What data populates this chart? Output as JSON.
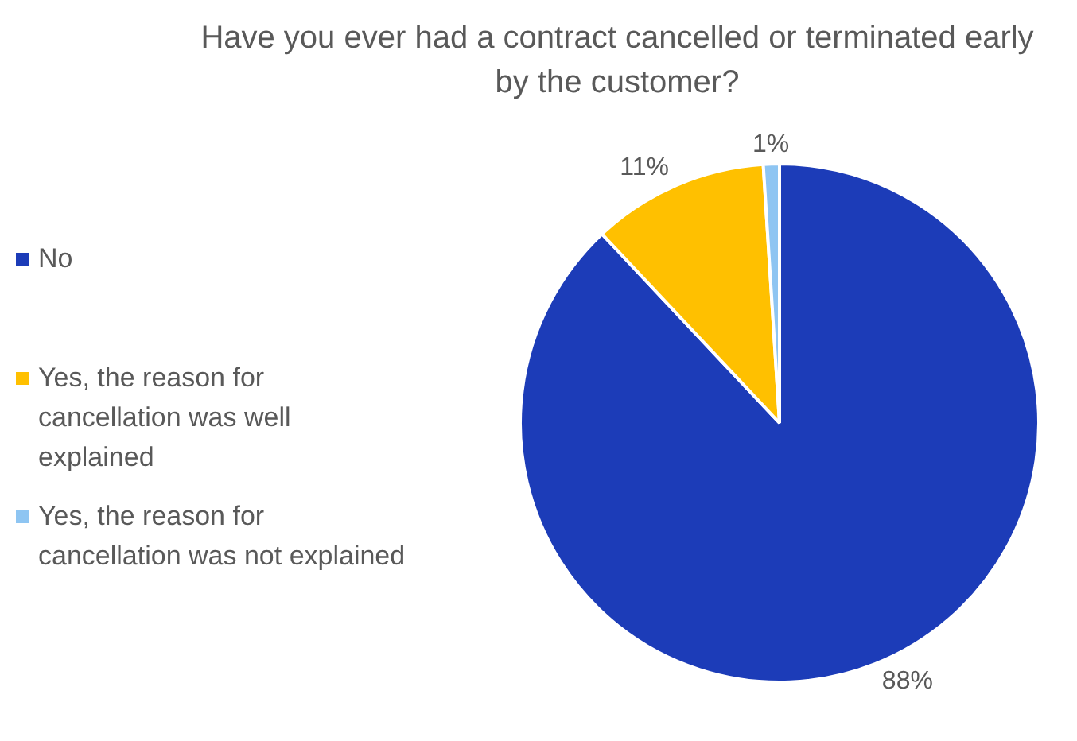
{
  "chart_data": {
    "type": "pie",
    "title": "Have you ever had a contract cancelled or terminated early by the customer?",
    "categories": [
      "No",
      "Yes, the reason for cancellation  was well explained",
      "Yes, the reason for cancellation was not explained"
    ],
    "values": [
      88,
      11,
      1
    ],
    "colors": [
      "#1c3cb8",
      "#ffc000",
      "#8ec5f2"
    ],
    "value_labels": [
      "88%",
      "11%",
      "1%"
    ],
    "legend": "left"
  }
}
